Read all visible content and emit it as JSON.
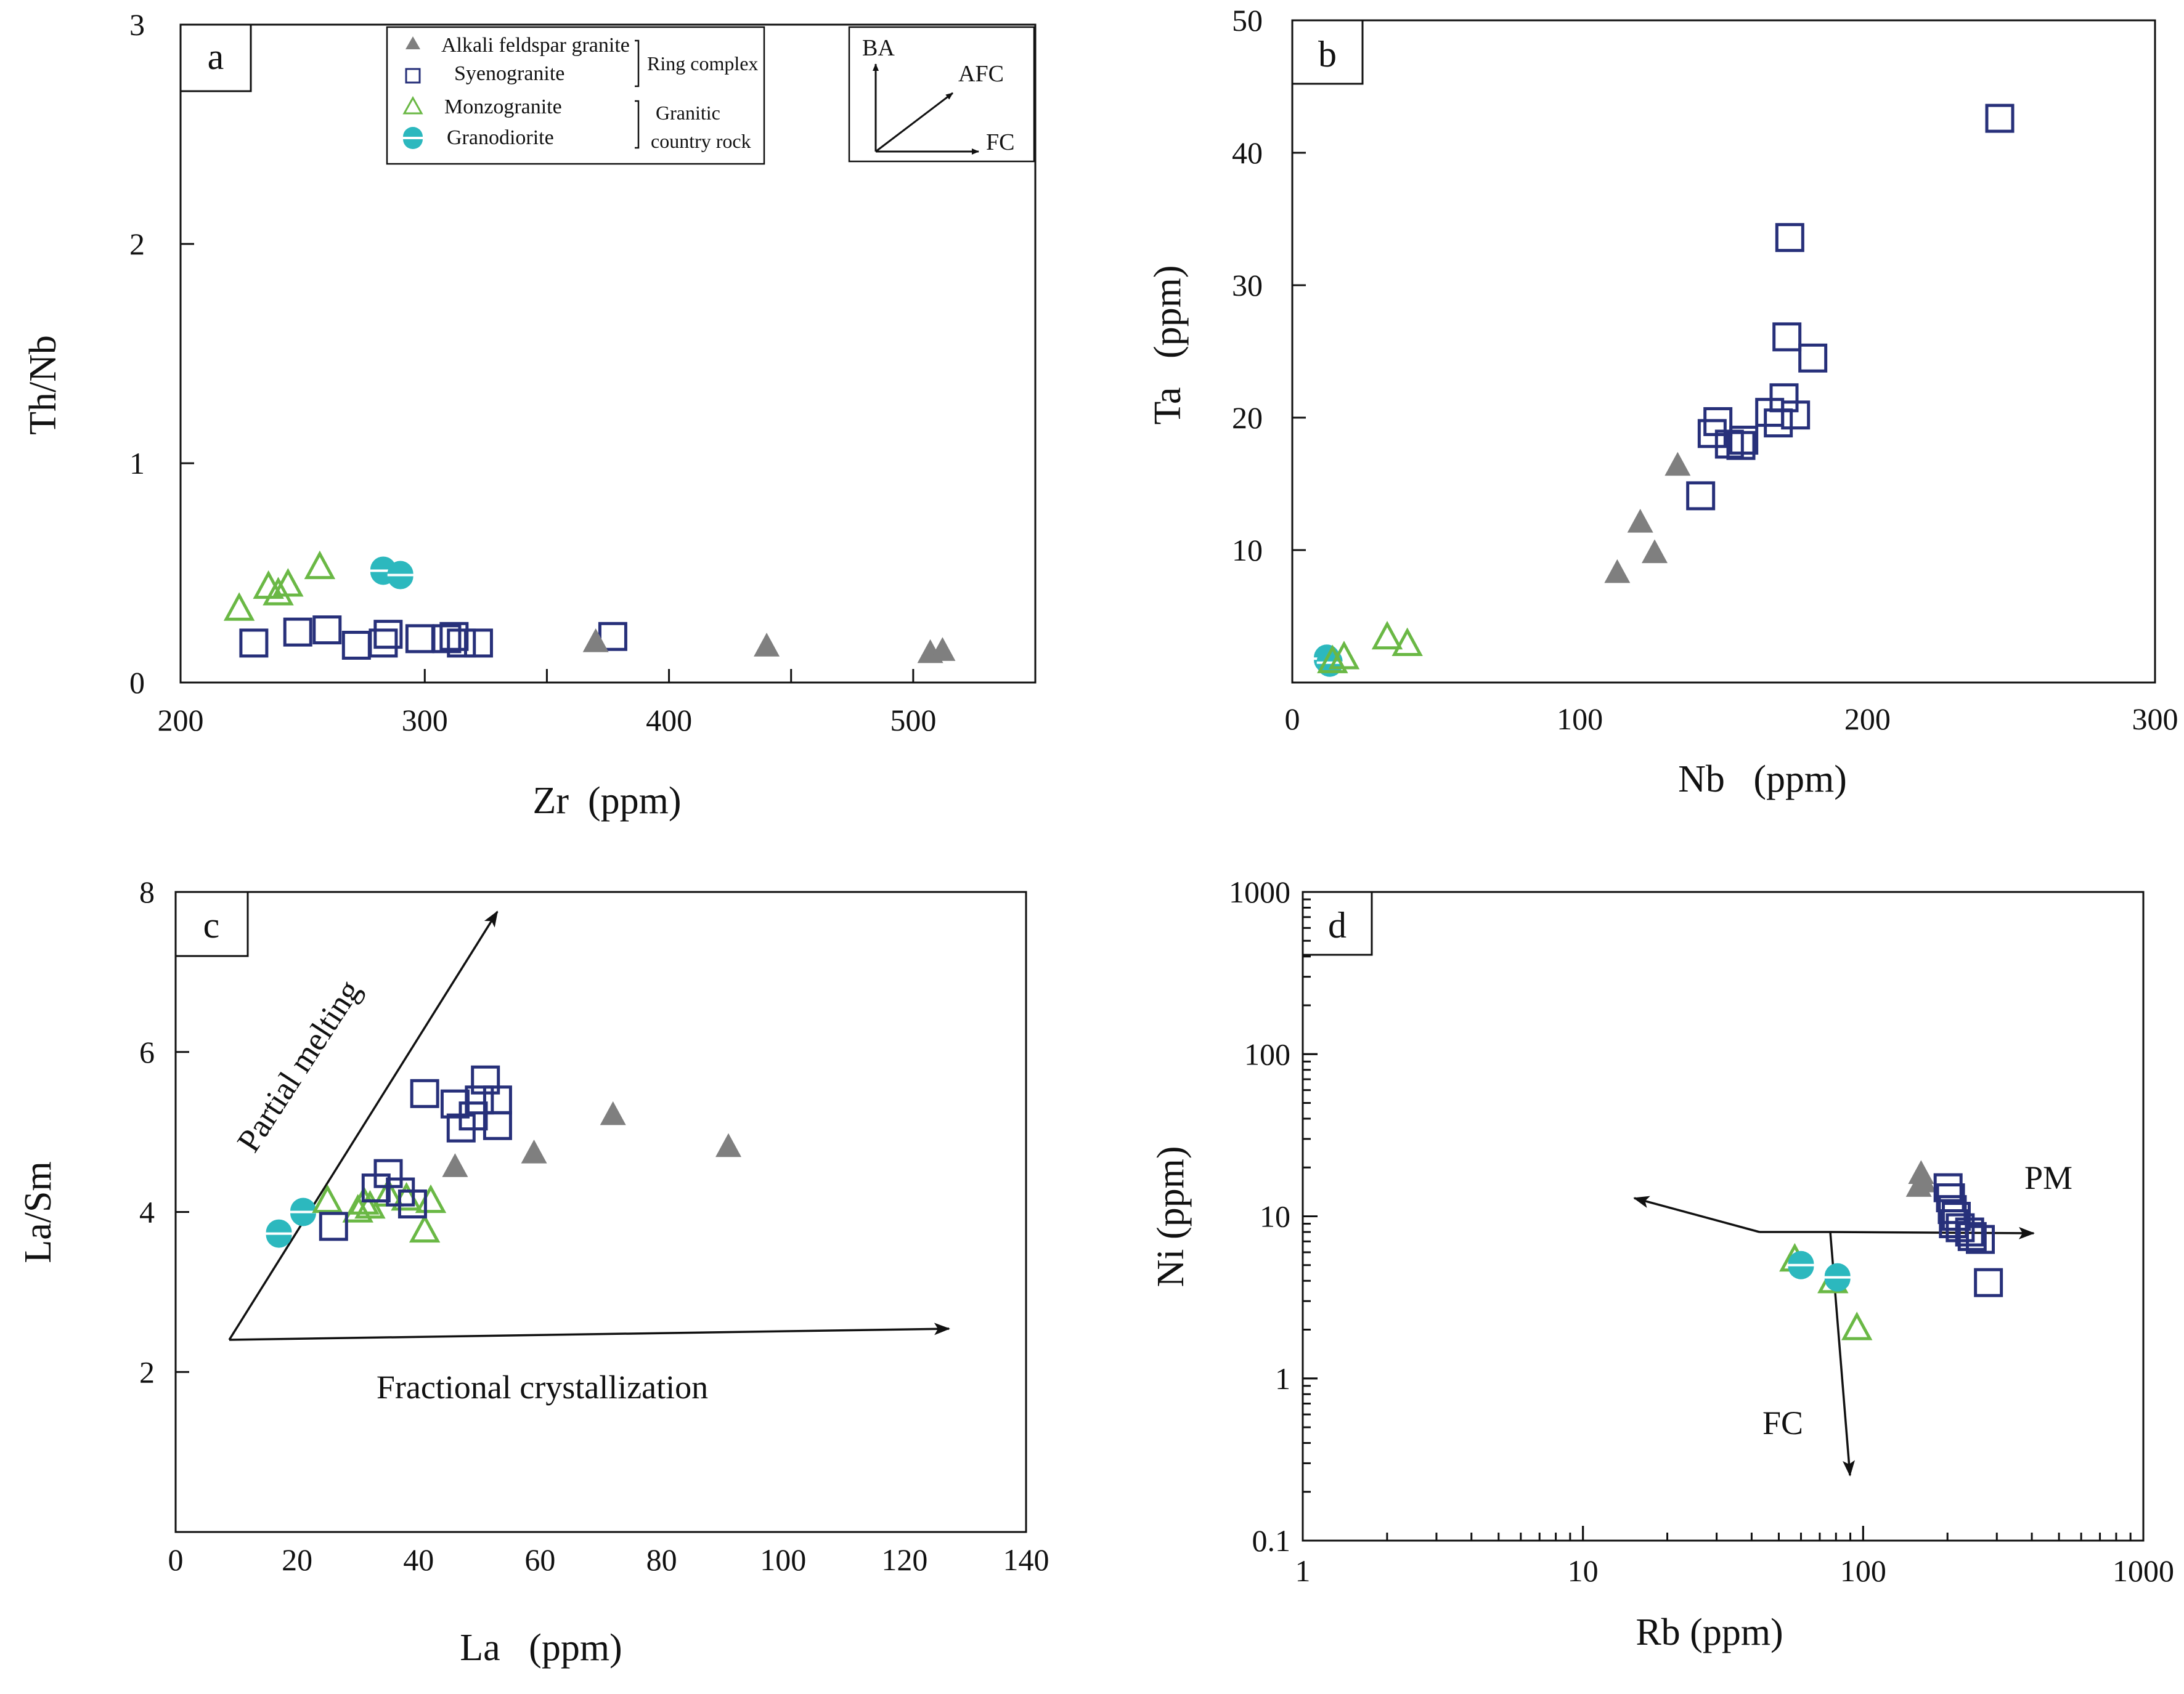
{
  "legend": {
    "entries": [
      {
        "key": "alkali",
        "label": "Alkali feldspar granite",
        "symbol": "filled-triangle",
        "color": "#7f7f7f"
      },
      {
        "key": "syeno",
        "label": "Syenogranite",
        "symbol": "open-square",
        "color": "#27307a"
      },
      {
        "key": "monzo",
        "label": "Monzogranite",
        "symbol": "open-triangle",
        "color": "#6ab845"
      },
      {
        "key": "grano",
        "label": "Granodiorite",
        "symbol": "half-circle",
        "color": "#2cb8be"
      }
    ],
    "group1_label": "Ring complex",
    "group2_label_line1": "Granitic",
    "group2_label_line2": "country rock"
  },
  "inset": {
    "ba": "BA",
    "afc": "AFC",
    "fc": "FC"
  },
  "chart_data": [
    {
      "panel": "a",
      "type": "scatter",
      "xlabel": "Zr  (ppm)",
      "ylabel": "Th/Nb",
      "xlim": [
        200,
        550
      ],
      "ylim": [
        0,
        3
      ],
      "xticks": [
        200,
        300,
        400,
        500
      ],
      "yticks": [
        0,
        1,
        2,
        3
      ],
      "series": [
        {
          "name": "Monzogranite",
          "points": [
            [
              224,
              0.33
            ],
            [
              236,
              0.43
            ],
            [
              240,
              0.4
            ],
            [
              244,
              0.44
            ],
            [
              257,
              0.52
            ]
          ]
        },
        {
          "name": "Granodiorite",
          "points": [
            [
              283,
              0.51
            ],
            [
              290,
              0.49
            ]
          ]
        },
        {
          "name": "Syenogranite",
          "points": [
            [
              230,
              0.18
            ],
            [
              248,
              0.23
            ],
            [
              260,
              0.24
            ],
            [
              272,
              0.17
            ],
            [
              283,
              0.18
            ],
            [
              285,
              0.22
            ],
            [
              298,
              0.2
            ],
            [
              309,
              0.2
            ],
            [
              312,
              0.21
            ],
            [
              315,
              0.18
            ],
            [
              322,
              0.18
            ],
            [
              377,
              0.21
            ]
          ]
        },
        {
          "name": "Alkali feldspar granite",
          "points": [
            [
              370,
              0.18
            ],
            [
              440,
              0.16
            ],
            [
              507,
              0.13
            ],
            [
              512,
              0.14
            ]
          ]
        }
      ]
    },
    {
      "panel": "b",
      "type": "scatter",
      "xlabel": "Nb   (ppm)",
      "ylabel": "Ta   (ppm)",
      "xlim": [
        0,
        300
      ],
      "ylim": [
        0,
        50
      ],
      "xticks": [
        0,
        100,
        200,
        300
      ],
      "yticks": [
        10,
        20,
        30,
        40,
        50
      ],
      "series": [
        {
          "name": "Granodiorite",
          "points": [
            [
              12,
              1.8
            ],
            [
              13,
              1.5
            ]
          ]
        },
        {
          "name": "Monzogranite",
          "points": [
            [
              14,
              1.5
            ],
            [
              18,
              1.8
            ],
            [
              33,
              3.3
            ],
            [
              40,
              2.8
            ]
          ]
        },
        {
          "name": "Alkali feldspar granite",
          "points": [
            [
              113,
              8.2
            ],
            [
              121,
              12.0
            ],
            [
              126,
              9.7
            ],
            [
              134,
              16.3
            ]
          ]
        },
        {
          "name": "Syenogranite",
          "points": [
            [
              142,
              14.1
            ],
            [
              146,
              18.8
            ],
            [
              148,
              19.7
            ],
            [
              152,
              18.0
            ],
            [
              156,
              17.9
            ],
            [
              157,
              18.3
            ],
            [
              166,
              20.4
            ],
            [
              169,
              19.6
            ],
            [
              171,
              21.5
            ],
            [
              172,
              26.1
            ],
            [
              173,
              33.6
            ],
            [
              175,
              20.2
            ],
            [
              181,
              24.5
            ],
            [
              246,
              42.6
            ]
          ]
        }
      ]
    },
    {
      "panel": "c",
      "type": "scatter",
      "xlabel": "La   (ppm)",
      "ylabel": "La/Sm",
      "xlim": [
        0,
        140
      ],
      "ylim": [
        0,
        8
      ],
      "xticks": [
        0,
        20,
        40,
        60,
        80,
        100,
        120,
        140
      ],
      "yticks": [
        2,
        4,
        6,
        8
      ],
      "annotations": {
        "partial_melting": "Partial melting",
        "fractional_crystallization": "Fractional crystallization"
      },
      "series": [
        {
          "name": "Granodiorite",
          "points": [
            [
              17,
              3.73
            ],
            [
              21,
              4.0
            ]
          ]
        },
        {
          "name": "Monzogranite",
          "points": [
            [
              25,
              4.12
            ],
            [
              30,
              4.0
            ],
            [
              31,
              4.1
            ],
            [
              32,
              4.05
            ],
            [
              35,
              4.2
            ],
            [
              38,
              4.15
            ],
            [
              41,
              3.75
            ],
            [
              42,
              4.12
            ]
          ]
        },
        {
          "name": "Syenogranite",
          "points": [
            [
              26,
              3.82
            ],
            [
              33,
              4.3
            ],
            [
              35,
              4.48
            ],
            [
              37,
              4.25
            ],
            [
              39,
              4.1
            ],
            [
              41,
              5.48
            ],
            [
              46,
              5.35
            ],
            [
              47,
              5.05
            ],
            [
              49,
              5.2
            ],
            [
              50,
              5.4
            ],
            [
              51,
              5.65
            ],
            [
              53,
              5.08
            ],
            [
              53,
              5.4
            ]
          ]
        },
        {
          "name": "Alkali feldspar granite",
          "points": [
            [
              46,
              4.55
            ],
            [
              59,
              4.72
            ],
            [
              72,
              5.2
            ],
            [
              91,
              4.8
            ]
          ]
        }
      ]
    },
    {
      "panel": "d",
      "type": "scatter",
      "xscale": "log",
      "yscale": "log",
      "xlabel": "Rb (ppm)",
      "ylabel": "Ni (ppm)",
      "xlim": [
        1,
        1000
      ],
      "ylim": [
        0.1,
        1000
      ],
      "xticks": [
        1,
        10,
        100,
        1000
      ],
      "yticks": [
        0.1,
        1,
        10,
        100,
        1000
      ],
      "annotations": {
        "pm": "PM",
        "fc": "FC"
      },
      "series": [
        {
          "name": "Monzogranite",
          "points": [
            [
              57,
              5.3
            ],
            [
              78,
              3.9
            ],
            [
              95,
              2.0
            ]
          ]
        },
        {
          "name": "Granodiorite",
          "points": [
            [
              60,
              5.0
            ],
            [
              81,
              4.2
            ]
          ]
        },
        {
          "name": "Alkali feldspar granite",
          "points": [
            [
              158,
              15
            ],
            [
              161,
              18
            ],
            [
              164,
              16
            ]
          ]
        },
        {
          "name": "Syenogranite",
          "points": [
            [
              201,
              15
            ],
            [
              205,
              13
            ],
            [
              208,
              11
            ],
            [
              210,
              9
            ],
            [
              215,
              10
            ],
            [
              222,
              8.5
            ],
            [
              240,
              8
            ],
            [
              245,
              7.5
            ],
            [
              262,
              7.2
            ],
            [
              280,
              3.9
            ]
          ]
        }
      ]
    }
  ]
}
